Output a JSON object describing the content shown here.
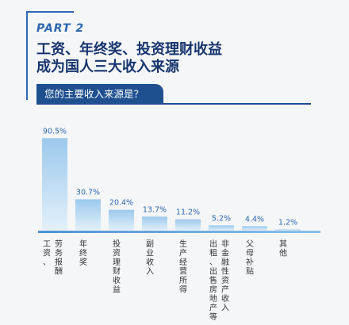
{
  "header": {
    "part": "PART 2",
    "title_line1": "工资、年终奖、投资理财收益",
    "title_line2": "成为国人三大收入来源",
    "question": "您的主要收入来源是？"
  },
  "colors": {
    "accent": "#2f68b0",
    "title": "#17356d",
    "tab": "#1e4f8f",
    "bar_top": "#9cc9ec",
    "bar_bottom": "#e3f0fa",
    "bar_label": "#2f68b0"
  },
  "chart_data": {
    "type": "bar",
    "categories": [
      "工资、劳务报酬",
      "年终奖",
      "投资理财收益",
      "副业收入",
      "生产经营所得",
      "出租、出售房地产等非金融性资产收入",
      "父母补贴",
      "其他"
    ],
    "category_columns": [
      [
        "工资、",
        "劳务报酬"
      ],
      [
        "年终奖"
      ],
      [
        "投资理财收益"
      ],
      [
        "副业收入"
      ],
      [
        "生产经营所得"
      ],
      [
        "出租、出售房地产等",
        "非金融性资产收入"
      ],
      [
        "父母补贴"
      ],
      [
        "其他"
      ]
    ],
    "values": [
      90.5,
      30.7,
      20.4,
      13.7,
      11.2,
      5.2,
      4.4,
      1.2
    ],
    "value_labels": [
      "90.5%",
      "30.7%",
      "20.4%",
      "13.7%",
      "11.2%",
      "5.2%",
      "4.4%",
      "1.2%"
    ],
    "unit": "%",
    "ylim": [
      0,
      100
    ],
    "grid": false,
    "legend": "none"
  }
}
